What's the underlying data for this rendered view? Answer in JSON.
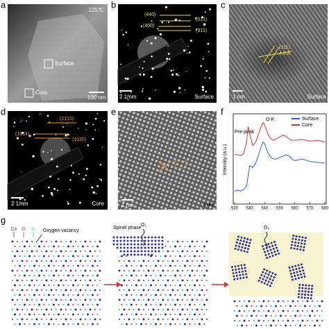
{
  "panels": {
    "a": {
      "label": "a",
      "temperature": "225℃",
      "regions": [
        "Surface",
        "Core"
      ],
      "scale_bar": "100 nm"
    },
    "b": {
      "label": "b",
      "planes": [
        "(440)",
        "(51̄1)",
        "(400)",
        "(31̄1)"
      ],
      "scale_bar": "2 1/nm",
      "region": "Surface"
    },
    "c": {
      "label": "c",
      "plane": "(311)",
      "spacing": "4.8 Å",
      "scale_bar": "1 nm",
      "region": "Surface"
    },
    "d": {
      "label": "d",
      "planes": [
        "(21̄10)",
        "(101̄4)",
        "(101̄0)"
      ],
      "scale_bar": "2 1/nm",
      "region": "Core"
    },
    "e": {
      "label": "e",
      "scale_bar": "1 nm",
      "region": "Core"
    },
    "f": {
      "label": "f",
      "chart_data": {
        "type": "line",
        "y_label": "Intensity (a.u.)",
        "annotations": [
          "Pre-peak",
          "O-K"
        ],
        "x": [
          520,
          522,
          524,
          526,
          528,
          529,
          530,
          532,
          534,
          536,
          538,
          539,
          540,
          542,
          544,
          546,
          548,
          550,
          552,
          554,
          556,
          558,
          560,
          565,
          570,
          575,
          580
        ],
        "xlim": [
          520,
          580
        ],
        "xticks": [
          520,
          530,
          540,
          550,
          560,
          570,
          580
        ],
        "ylim": [
          0,
          1
        ],
        "series": [
          {
            "name": "Surface",
            "color": "#2f5cc4",
            "values": [
              0.12,
              0.13,
              0.12,
              0.14,
              0.18,
              0.3,
              0.42,
              0.4,
              0.45,
              0.55,
              0.66,
              0.7,
              0.68,
              0.58,
              0.52,
              0.5,
              0.5,
              0.52,
              0.53,
              0.55,
              0.54,
              0.5,
              0.48,
              0.5,
              0.47,
              0.46,
              0.45
            ]
          },
          {
            "name": "Core",
            "color": "#d8302a",
            "values": [
              0.55,
              0.55,
              0.54,
              0.56,
              0.7,
              0.88,
              0.8,
              0.66,
              0.7,
              0.8,
              0.9,
              0.93,
              0.9,
              0.8,
              0.74,
              0.72,
              0.74,
              0.76,
              0.78,
              0.77,
              0.74,
              0.72,
              0.72,
              0.73,
              0.71,
              0.72,
              0.7
            ]
          }
        ]
      }
    },
    "g": {
      "label": "g",
      "legend": [
        "Co",
        "O",
        "Li"
      ],
      "legend_colors": [
        "#2b2f8f",
        "#e0302a",
        "#3cc0e0"
      ],
      "annotations": [
        "Oxygen vacancy",
        "Spinel phase",
        "O₂",
        "O₂"
      ]
    }
  }
}
